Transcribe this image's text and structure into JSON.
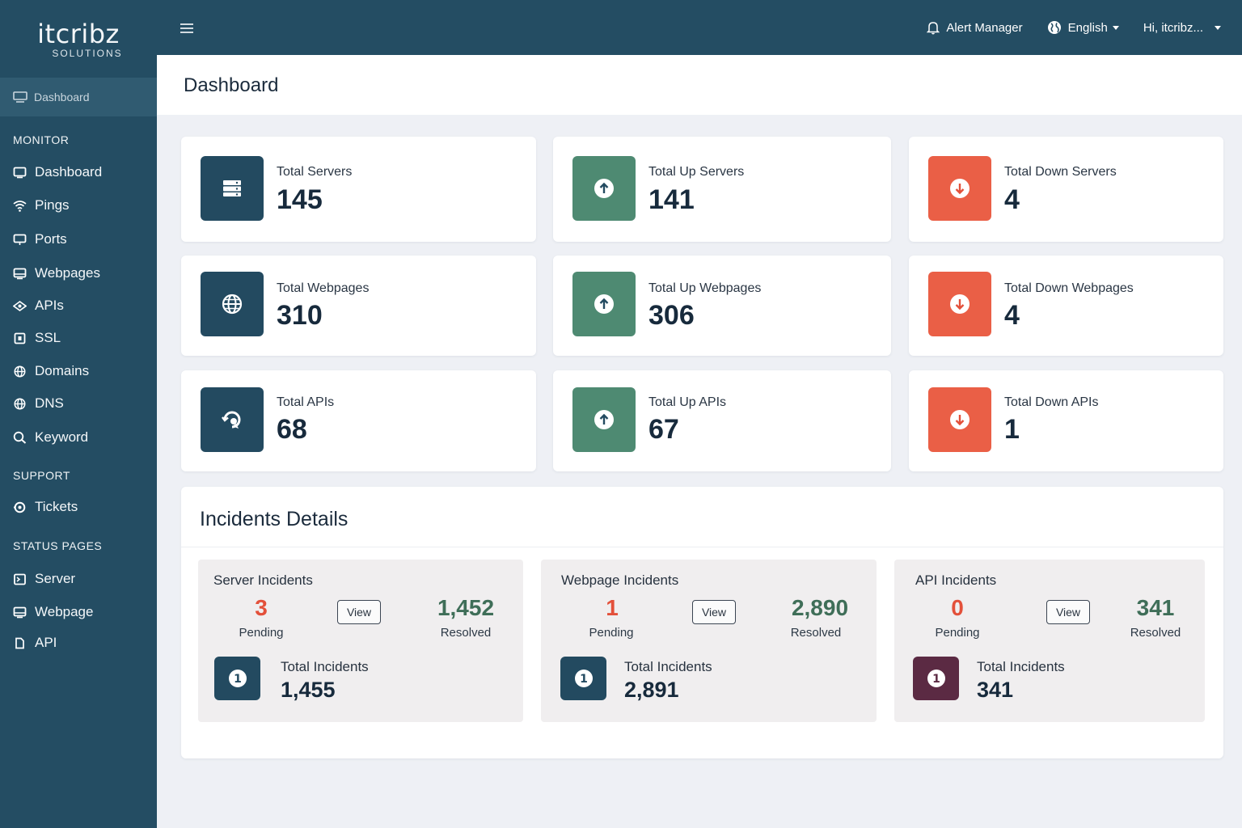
{
  "brand": {
    "name": "itcribz",
    "sub": "SOLUTIONS"
  },
  "sidebar": {
    "active_item": "Dashboard",
    "sections": [
      {
        "title": "MONITOR",
        "items": [
          "Dashboard",
          "Pings",
          "Ports",
          "Webpages",
          "APIs",
          "SSL",
          "Domains",
          "DNS",
          "Keyword"
        ]
      },
      {
        "title": "SUPPORT",
        "items": [
          "Tickets"
        ]
      },
      {
        "title": "STATUS PAGES",
        "items": [
          "Server",
          "Webpage",
          "API"
        ]
      }
    ]
  },
  "header": {
    "alert_manager": "Alert Manager",
    "language": "English",
    "user": "Hi, itcribz..."
  },
  "page": {
    "title": "Dashboard"
  },
  "stats": [
    {
      "label": "Total Servers",
      "value": "145",
      "color": "blue",
      "icon": "server-icon"
    },
    {
      "label": "Total Up Servers",
      "value": "141",
      "color": "green",
      "icon": "arrow-up-circle-icon"
    },
    {
      "label": "Total Down Servers",
      "value": "4",
      "color": "red",
      "icon": "arrow-down-circle-icon"
    },
    {
      "label": "Total Webpages",
      "value": "310",
      "color": "blue",
      "icon": "globe-icon"
    },
    {
      "label": "Total Up Webpages",
      "value": "306",
      "color": "green",
      "icon": "arrow-up-circle-icon"
    },
    {
      "label": "Total Down Webpages",
      "value": "4",
      "color": "red",
      "icon": "arrow-down-circle-icon"
    },
    {
      "label": "Total APIs",
      "value": "68",
      "color": "blue",
      "icon": "api-icon"
    },
    {
      "label": "Total Up APIs",
      "value": "67",
      "color": "green",
      "icon": "arrow-up-circle-icon"
    },
    {
      "label": "Total Down APIs",
      "value": "1",
      "color": "red",
      "icon": "arrow-down-circle-icon"
    }
  ],
  "incidents": {
    "title": "Incidents Details",
    "panels": [
      {
        "title": "Server Incidents",
        "pending": "3",
        "pending_label": "Pending",
        "view_label": "View",
        "resolved": "1,452",
        "resolved_label": "Resolved",
        "total_label": "Total Incidents",
        "total": "1,455"
      },
      {
        "title": "Webpage Incidents",
        "pending": "1",
        "pending_label": "Pending",
        "view_label": "View",
        "resolved": "2,890",
        "resolved_label": "Resolved",
        "total_label": "Total Incidents",
        "total": "2,891"
      },
      {
        "title": "API Incidents",
        "pending": "0",
        "pending_label": "Pending",
        "view_label": "View",
        "resolved": "341",
        "resolved_label": "Resolved",
        "total_label": "Total Incidents",
        "total": "341"
      }
    ]
  },
  "colors": {
    "sidebar": "#244d63",
    "tile_blue": "#234a60",
    "tile_green": "#4e8a72",
    "tile_red": "#ea5f46",
    "pending_red": "#e3503a",
    "resolved_green": "#3f6e58",
    "tile_plum": "#5b2a43"
  }
}
